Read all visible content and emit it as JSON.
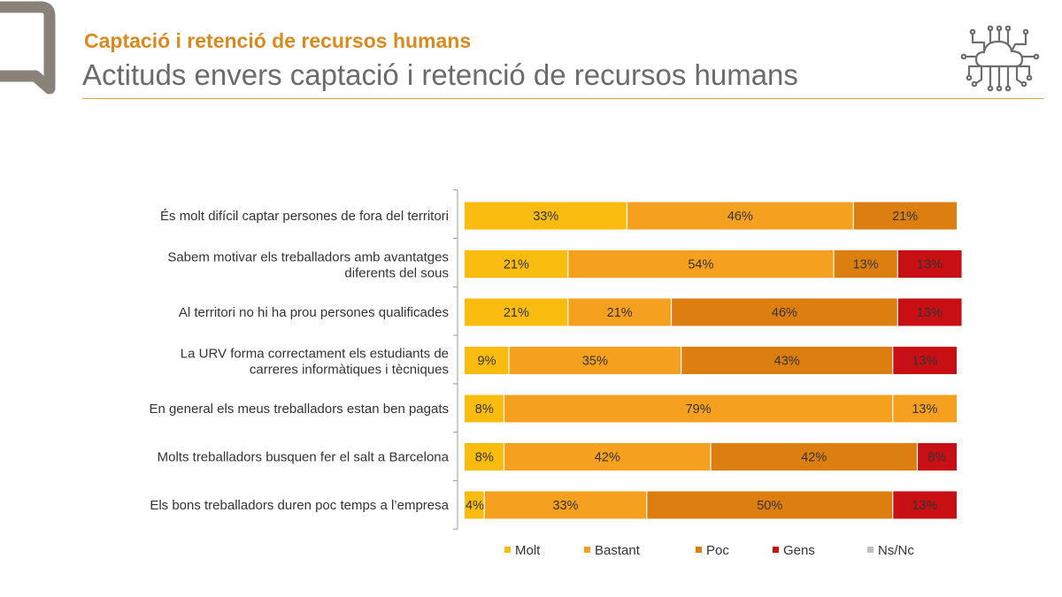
{
  "header": {
    "subtitle": "Captació i retenció de recursos humans",
    "title": "Actituds envers captació i retenció de recursos humans"
  },
  "icons": {
    "logo": "brand-q-logo-icon",
    "topic": "cloud-circuit-icon"
  },
  "chart_data": {
    "type": "bar",
    "orientation": "horizontal",
    "stacked": true,
    "categories": [
      [
        "És molt difícil captar persones de fora del territori"
      ],
      [
        "Sabem motivar els treballadors amb avantatges",
        "diferents del sous"
      ],
      [
        "Al territori no hi ha prou persones qualificades"
      ],
      [
        "La URV forma correctament els estudiants de",
        "carreres informàtiques i tècniques"
      ],
      [
        "En general els meus treballadors estan ben pagats"
      ],
      [
        "Molts treballadors busquen fer el salt a Barcelona"
      ],
      [
        "Els bons treballadors duren poc temps a l’empresa"
      ]
    ],
    "series": [
      {
        "name": "Molt",
        "color": "#f8bb0e",
        "values": [
          33,
          21,
          21,
          9,
          8,
          8,
          4
        ]
      },
      {
        "name": "Bastant",
        "color": "#f5a01e",
        "values": [
          46,
          54,
          21,
          35,
          79,
          42,
          33
        ]
      },
      {
        "name": "Poc",
        "color": "#dd7f10",
        "values": [
          21,
          13,
          46,
          43,
          0,
          42,
          50
        ]
      },
      {
        "name": "Gens",
        "color": "#c80f14",
        "values": [
          0,
          13,
          13,
          13,
          0,
          8,
          13
        ]
      },
      {
        "name": "Ns/Nc",
        "color": "#bfbfbf",
        "values": [
          0,
          0,
          0,
          0,
          0,
          0,
          0
        ]
      }
    ],
    "extra_labels": [
      {
        "row": 4,
        "text": "13%",
        "color": "#f5a01e"
      }
    ],
    "xlim": [
      0,
      100
    ],
    "value_suffix": "%",
    "legend": "bottom",
    "grid": false
  }
}
